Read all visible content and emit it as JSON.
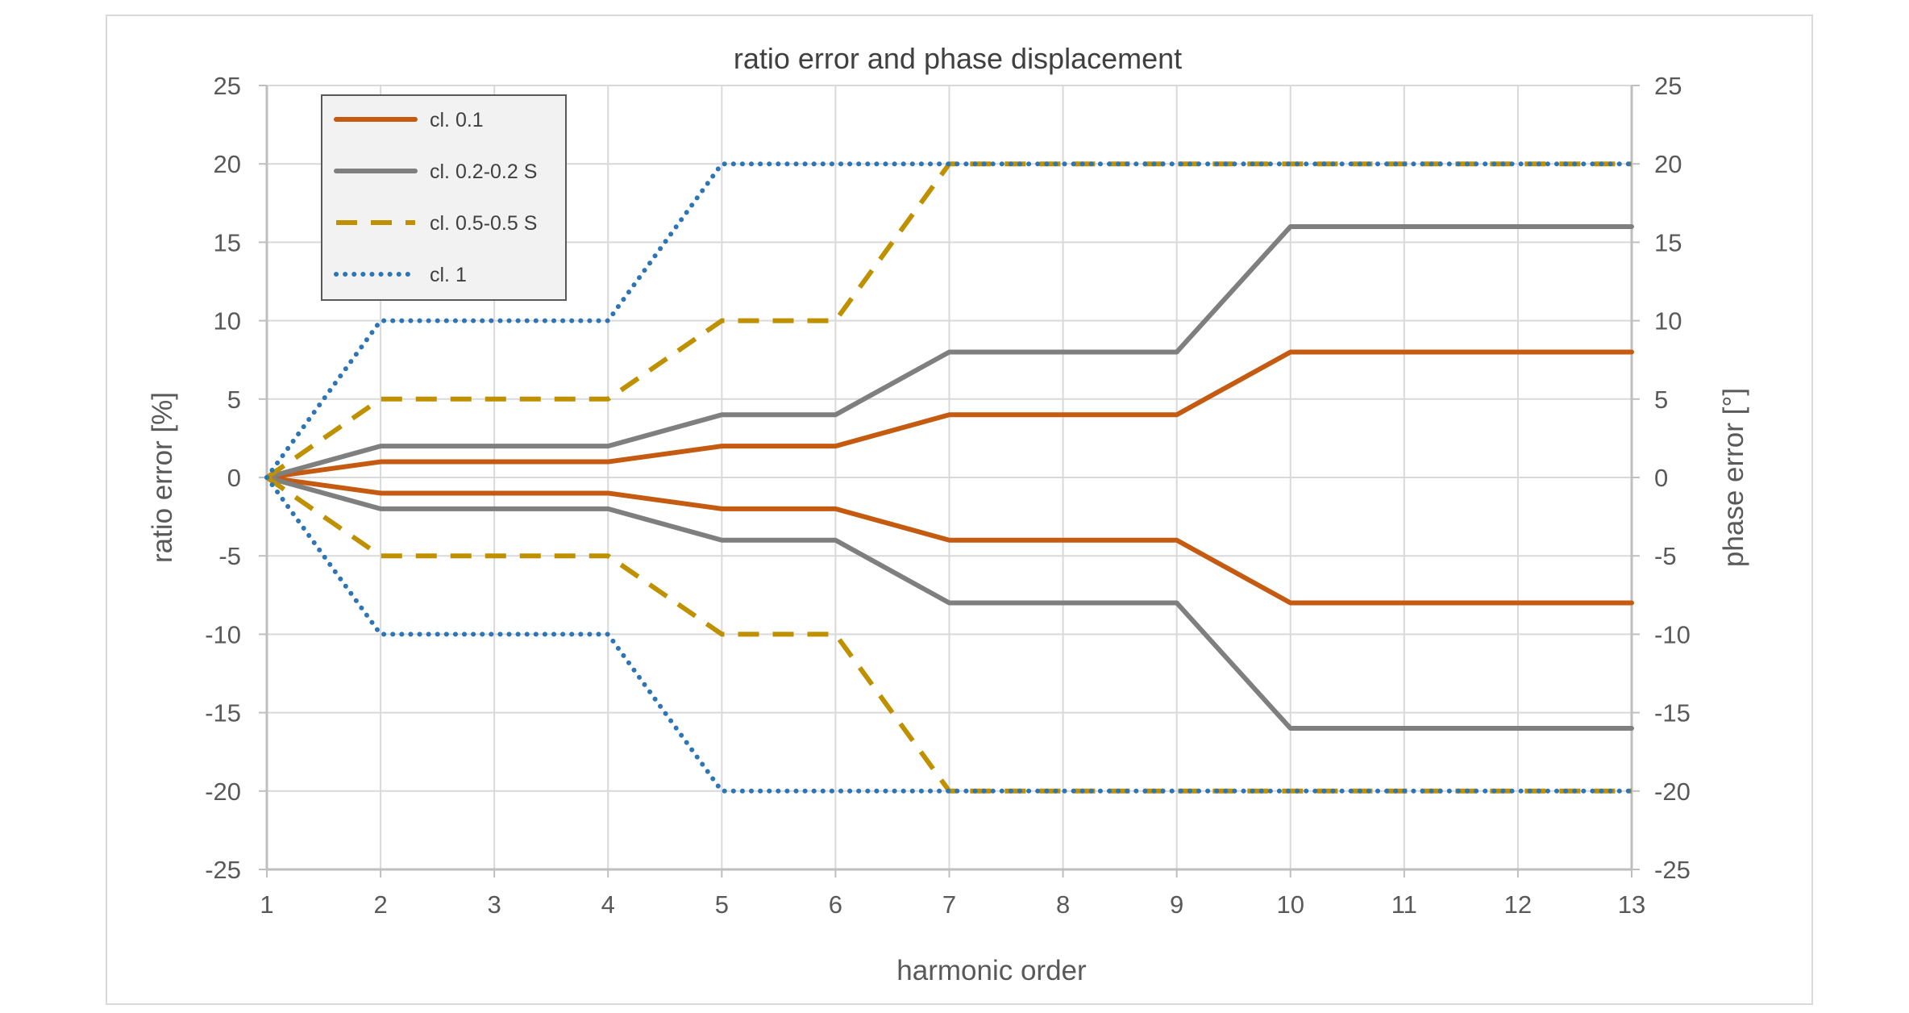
{
  "chart_data": {
    "type": "line",
    "title": "ratio error and phase displacement",
    "xlabel": "harmonic order",
    "ylabel": "ratio error [%]",
    "y2label": "phase error [°]",
    "x": [
      1,
      2,
      3,
      4,
      5,
      6,
      7,
      8,
      9,
      10,
      11,
      12,
      13
    ],
    "ylim": [
      -25,
      25
    ],
    "y2lim": [
      -25,
      25
    ],
    "yticks": [
      -25,
      -20,
      -15,
      -10,
      -5,
      0,
      5,
      10,
      15,
      20,
      25
    ],
    "grid": true,
    "legend_position": "top-left",
    "series": [
      {
        "name": "cl. 0.1",
        "color": "#c55a11",
        "style": "solid",
        "upper": [
          0,
          1,
          1,
          1,
          2,
          2,
          4,
          4,
          4,
          8,
          8,
          8,
          8
        ],
        "lower": [
          0,
          -1,
          -1,
          -1,
          -2,
          -2,
          -4,
          -4,
          -4,
          -8,
          -8,
          -8,
          -8
        ]
      },
      {
        "name": "cl. 0.2-0.2 S",
        "color": "#7f7f7f",
        "style": "solid",
        "upper": [
          0,
          2,
          2,
          2,
          4,
          4,
          8,
          8,
          8,
          16,
          16,
          16,
          16
        ],
        "lower": [
          0,
          -2,
          -2,
          -2,
          -4,
          -4,
          -8,
          -8,
          -8,
          -16,
          -16,
          -16,
          -16
        ]
      },
      {
        "name": "cl. 0.5-0.5 S",
        "color": "#bf9000",
        "style": "dashed",
        "upper": [
          0,
          5,
          5,
          5,
          10,
          10,
          20,
          20,
          20,
          20,
          20,
          20,
          20
        ],
        "lower": [
          0,
          -5,
          -5,
          -5,
          -10,
          -10,
          -20,
          -20,
          -20,
          -20,
          -20,
          -20,
          -20
        ]
      },
      {
        "name": "cl. 1",
        "color": "#2e75b6",
        "style": "dotted",
        "upper": [
          0,
          10,
          10,
          10,
          20,
          20,
          20,
          20,
          20,
          20,
          20,
          20,
          20
        ],
        "lower": [
          0,
          -10,
          -10,
          -10,
          -20,
          -20,
          -20,
          -20,
          -20,
          -20,
          -20,
          -20,
          -20
        ]
      }
    ]
  }
}
